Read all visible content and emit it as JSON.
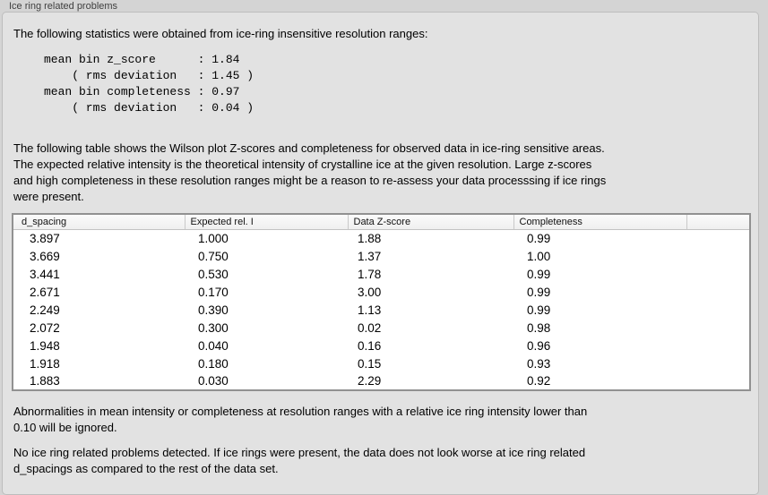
{
  "colors": {
    "page_bg": "#d4d4d4",
    "panel_bg": "#e2e2e2",
    "panel_border": "#bdbdbd",
    "table_bg": "#ffffff",
    "table_border": "#919191",
    "header_separator": "#c9c9c9",
    "text": "#000000"
  },
  "group_label": "Ice ring related problems",
  "intro": "The following statistics were obtained from ice-ring insensitive resolution ranges:",
  "stats_block": "mean bin z_score      : 1.84\n    ( rms deviation   : 1.45 )\nmean bin completeness : 0.97\n    ( rms deviation   : 0.04 )",
  "stats": {
    "mean_bin_z_score": "1.84",
    "z_score_rms_deviation": "1.45",
    "mean_bin_completeness": "0.97",
    "completeness_rms_deviation": "0.04"
  },
  "table_intro": "The following table shows the Wilson plot Z-scores and completeness for observed data in ice-ring sensitive areas.\nThe expected relative intensity is the theoretical intensity of crystalline ice at the given resolution. Large z-scores\nand high completeness in these resolution ranges might be a reason to re-assess your data processsing if ice rings\nwere present.",
  "table": {
    "columns": [
      "d_spacing",
      "Expected rel. I",
      "Data Z-score",
      "Completeness",
      ""
    ],
    "rows": [
      [
        "3.897",
        "1.000",
        "1.88",
        "0.99"
      ],
      [
        "3.669",
        "0.750",
        "1.37",
        "1.00"
      ],
      [
        "3.441",
        "0.530",
        "1.78",
        "0.99"
      ],
      [
        "2.671",
        "0.170",
        "3.00",
        "0.99"
      ],
      [
        "2.249",
        "0.390",
        "1.13",
        "0.99"
      ],
      [
        "2.072",
        "0.300",
        "0.02",
        "0.98"
      ],
      [
        "1.948",
        "0.040",
        "0.16",
        "0.96"
      ],
      [
        "1.918",
        "0.180",
        "0.15",
        "0.93"
      ],
      [
        "1.883",
        "0.030",
        "2.29",
        "0.92"
      ]
    ]
  },
  "note_ignore": "Abnormalities in mean intensity or completeness at resolution ranges with a relative ice ring intensity lower than\n0.10 will be ignored.",
  "note_result": "No ice ring related problems detected. If ice rings were present, the data does not look worse at ice ring related\nd_spacings as compared to the rest of the data set."
}
